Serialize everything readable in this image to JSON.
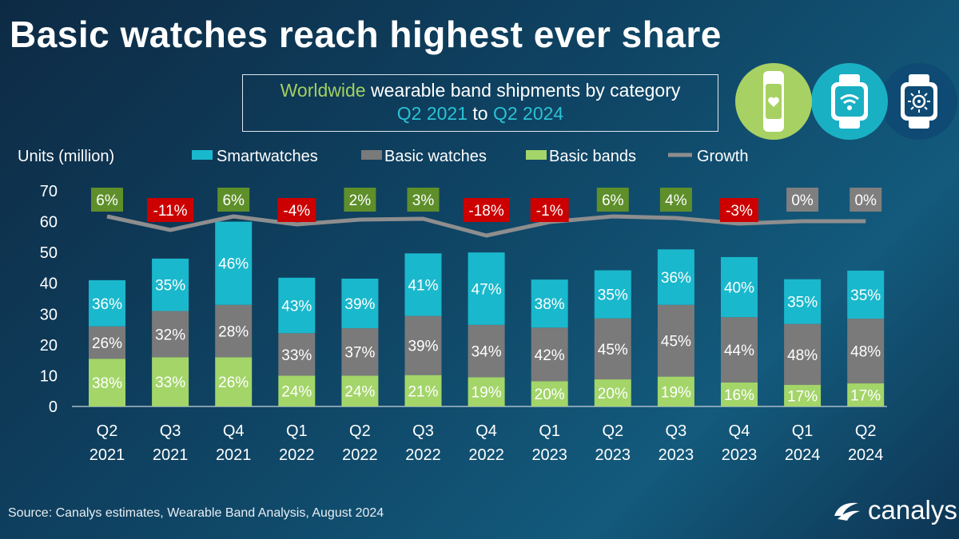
{
  "title": "Basic watches reach highest ever share",
  "subtitle": {
    "line1_prefix": "Worldwide",
    "line1_rest": " wearable band shipments by category",
    "line2_start": "Q2 2021",
    "line2_mid": " to ",
    "line2_end": "Q2 2024"
  },
  "icons": [
    "fitness-band-icon",
    "smartwatch-wifi-icon",
    "basic-watch-icon"
  ],
  "source": "Source:  Canalys estimates, Wearable Band Analysis, August 2024",
  "brand": "canalys",
  "colors": {
    "smartwatches": "#1ab8cc",
    "basic_watches": "#7a7a7a",
    "basic_bands": "#a3d569",
    "growth_line": "#8e8e8e",
    "growth_positive": "#5e8f2a",
    "growth_negative": "#cc0000",
    "growth_zero": "#7f7f7f",
    "icon_band_bg": "#a7d163",
    "icon_smart_bg": "#1ab0c4",
    "icon_basic_bg": "#0e4a74"
  },
  "chart_data": {
    "type": "bar",
    "stacked": true,
    "ylabel": "Units (million)",
    "ylim": [
      0,
      70
    ],
    "yticks": [
      0,
      10,
      20,
      30,
      40,
      50,
      60,
      70
    ],
    "categories": [
      "Q2\n2021",
      "Q3\n2021",
      "Q4\n2021",
      "Q1\n2022",
      "Q2\n2022",
      "Q3\n2022",
      "Q4\n2022",
      "Q1\n2023",
      "Q2\n2023",
      "Q3\n2023",
      "Q4\n2023",
      "Q1\n2024",
      "Q2\n2024"
    ],
    "legend": [
      "Smartwatches",
      "Basic watches",
      "Basic bands",
      "Growth"
    ],
    "legend_position": "top",
    "series": [
      {
        "name": "Basic bands",
        "values": [
          15.5,
          16,
          16,
          10,
          10,
          10.2,
          9.5,
          8.2,
          8.8,
          9.7,
          7.8,
          7,
          7.5
        ],
        "labels": [
          "38%",
          "33%",
          "26%",
          "24%",
          "24%",
          "21%",
          "19%",
          "20%",
          "20%",
          "19%",
          "16%",
          "17%",
          "17%"
        ]
      },
      {
        "name": "Basic watches",
        "values": [
          10.5,
          15,
          17,
          13.8,
          15.4,
          19.2,
          17,
          17.4,
          19.8,
          23.3,
          21.2,
          19.8,
          21
        ]
      },
      {
        "name": "Smartwatches",
        "values": [
          15,
          17,
          27,
          18,
          16.1,
          20.3,
          23.5,
          15.6,
          15.6,
          18,
          19.5,
          14.5,
          15.6
        ],
        "labels": [
          "36%",
          "35%",
          "46%",
          "43%",
          "39%",
          "41%",
          "47%",
          "38%",
          "35%",
          "36%",
          "40%",
          "35%",
          "35%"
        ]
      }
    ],
    "basic_watches_labels": [
      "26%",
      "32%",
      "28%",
      "33%",
      "37%",
      "39%",
      "34%",
      "42%",
      "45%",
      "45%",
      "44%",
      "48%",
      "48%"
    ],
    "growth": {
      "name": "Growth",
      "labels": [
        "6%",
        "-11%",
        "6%",
        "-4%",
        "2%",
        "3%",
        "-18%",
        "-1%",
        "6%",
        "4%",
        "-3%",
        "0%",
        "0%"
      ],
      "values": [
        6,
        -11,
        6,
        -4,
        2,
        3,
        -18,
        -1,
        6,
        4,
        -3,
        0,
        0
      ]
    }
  }
}
